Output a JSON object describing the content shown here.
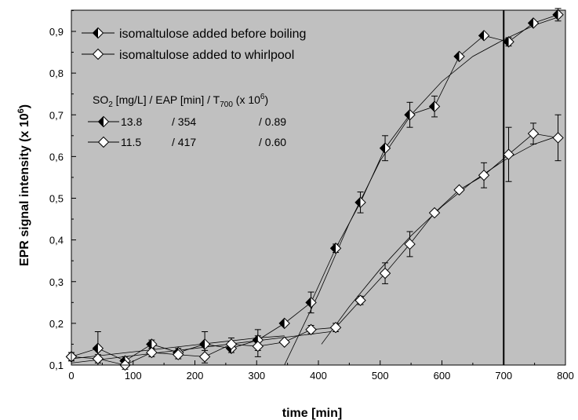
{
  "chart_data": {
    "type": "scatter",
    "title": "",
    "xlabel": "time [min]",
    "ylabel": "EPR signal intensity (x 10",
    "ylabel_superscript": "6",
    "ylabel_close": ")",
    "xlim": [
      0,
      800
    ],
    "ylim": [
      0.1,
      0.95
    ],
    "x_ticks": [
      0,
      100,
      200,
      300,
      400,
      500,
      600,
      700,
      800
    ],
    "x_tick_labels": [
      "0",
      "100",
      "200",
      "300",
      "400",
      "500",
      "600",
      "700",
      "800"
    ],
    "y_ticks": [
      0.1,
      0.2,
      0.3,
      0.4,
      0.5,
      0.6,
      0.7,
      0.8,
      0.9
    ],
    "y_tick_labels": [
      "0,1",
      "0,2",
      "0,3",
      "0,4",
      "0,5",
      "0,6",
      "0,7",
      "0,8",
      "0,9"
    ],
    "background": "#c0c0c0",
    "grid": false,
    "vertical_marker": 700,
    "legend_position": "top-left",
    "series": [
      {
        "name": "isomaltulose added before boiling",
        "marker": "half-filled-diamond",
        "x": [
          0,
          43,
          87,
          130,
          173,
          216,
          259,
          302,
          345,
          388,
          428,
          468,
          508,
          548,
          588,
          628,
          668,
          708,
          748,
          788
        ],
        "y": [
          0.12,
          0.14,
          0.11,
          0.15,
          0.13,
          0.15,
          0.14,
          0.16,
          0.2,
          0.25,
          0.38,
          0.49,
          0.62,
          0.7,
          0.72,
          0.84,
          0.89,
          0.875,
          0.92,
          0.94
        ],
        "err": [
          0.01,
          0.04,
          0.01,
          0.01,
          0.01,
          0.03,
          0.01,
          0.025,
          0.005,
          0.025,
          0.01,
          0.025,
          0.03,
          0.03,
          0.025,
          0.005,
          0.005,
          0.01,
          0.005,
          0.015
        ]
      },
      {
        "name": "isomaltulose added to whirlpool",
        "marker": "open-diamond",
        "x": [
          0,
          43,
          87,
          130,
          173,
          216,
          259,
          302,
          345,
          388,
          428,
          468,
          508,
          548,
          588,
          628,
          668,
          708,
          748,
          788
        ],
        "y": [
          0.12,
          0.115,
          0.1,
          0.13,
          0.125,
          0.12,
          0.15,
          0.145,
          0.155,
          0.185,
          0.19,
          0.255,
          0.32,
          0.39,
          0.465,
          0.52,
          0.555,
          0.605,
          0.655,
          0.645
        ],
        "err": [
          0.01,
          0.01,
          0.01,
          0.01,
          0.01,
          0.015,
          0.015,
          0.025,
          0.005,
          0.01,
          0.01,
          0.01,
          0.025,
          0.03,
          0.005,
          0.005,
          0.03,
          0.065,
          0.025,
          0.055
        ]
      }
    ],
    "fit_curves": [
      {
        "x": [
          0,
          300,
          345
        ],
        "y": [
          0.115,
          0.165,
          0.17
        ]
      },
      {
        "x": [
          345,
          400,
          450,
          500,
          550,
          600,
          650,
          700,
          750,
          790
        ],
        "y": [
          0.1,
          0.27,
          0.44,
          0.59,
          0.7,
          0.78,
          0.84,
          0.88,
          0.915,
          0.935
        ]
      },
      {
        "x": [
          0,
          200,
          420
        ],
        "y": [
          0.105,
          0.14,
          0.18
        ]
      },
      {
        "x": [
          405,
          450,
          500,
          550,
          600,
          650,
          700,
          750,
          790
        ],
        "y": [
          0.15,
          0.24,
          0.33,
          0.41,
          0.48,
          0.54,
          0.59,
          0.63,
          0.65
        ]
      }
    ],
    "table_header": {
      "pre": "SO",
      "sub1": "2",
      "mid": " [mg/L] / EAP [min] / T",
      "sub2": "700",
      "post": " (x 10",
      "sup": "6",
      "close": ")"
    },
    "table_rows": [
      {
        "c1": "13.8",
        "c2": "/ 354",
        "c3": "/ 0.89"
      },
      {
        "c1": "11.5",
        "c2": "/ 417",
        "c3": "/ 0.60"
      }
    ]
  }
}
